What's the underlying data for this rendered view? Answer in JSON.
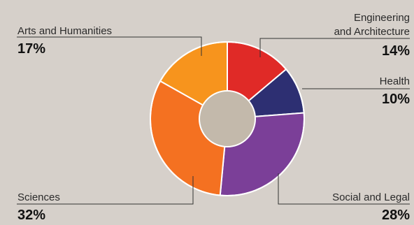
{
  "chart_data": {
    "type": "pie",
    "variant": "donut",
    "categories": [
      "Engineering and Architecture",
      "Health",
      "Social and Legal",
      "Sciences",
      "Arts and Humanities"
    ],
    "values": [
      14,
      10,
      28,
      32,
      17
    ],
    "unit": "%",
    "colors": [
      "#e02a27",
      "#2d2f72",
      "#7b3f98",
      "#f47121",
      "#f7941d"
    ],
    "center_color": "#c3b9ab",
    "legend": "callout-labels"
  },
  "labels": {
    "engineering": {
      "line1": "Engineering",
      "line2": "and Architecture",
      "value": "14%"
    },
    "health": {
      "line1": "Health",
      "value": "10%"
    },
    "social": {
      "line1": "Social and Legal",
      "value": "28%"
    },
    "sciences": {
      "line1": "Sciences",
      "value": "32%"
    },
    "arts": {
      "line1": "Arts and Humanities",
      "value": "17%"
    }
  }
}
